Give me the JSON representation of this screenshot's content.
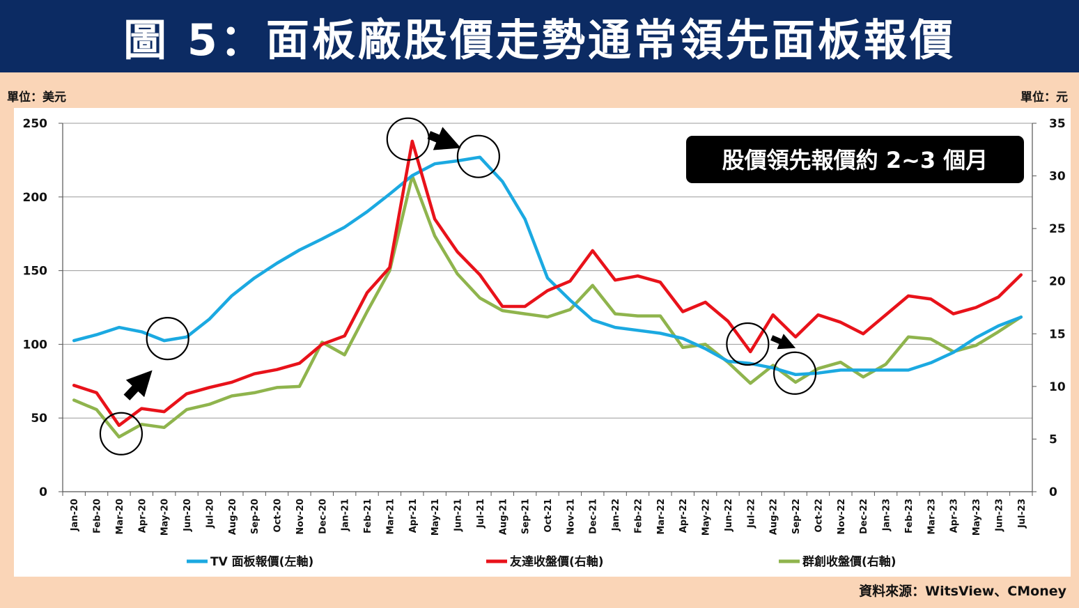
{
  "title": "圖 5：面板廠股價走勢通常領先面板報價",
  "unit_left": "單位：美元",
  "unit_right": "單位：元",
  "source": "資料來源：WitsView、CMoney",
  "chart_data": {
    "type": "line",
    "annotation": "股價領先報價約 2~3 個月",
    "categories": [
      "Jan-20",
      "Feb-20",
      "Mar-20",
      "Apr-20",
      "May-20",
      "Jun-20",
      "Jul-20",
      "Aug-20",
      "Sep-20",
      "Oct-20",
      "Nov-20",
      "Dec-20",
      "Jan-21",
      "Feb-21",
      "Mar-21",
      "Apr-21",
      "May-21",
      "Jun-21",
      "Jul-21",
      "Aug-21",
      "Sep-21",
      "Oct-21",
      "Nov-21",
      "Dec-21",
      "Jan-22",
      "Feb-22",
      "Mar-22",
      "Apr-22",
      "May-22",
      "Jun-22",
      "Jul-22",
      "Aug-22",
      "Sep-22",
      "Oct-22",
      "Nov-22",
      "Dec-22",
      "Jan-23",
      "Feb-23",
      "Mar-23",
      "Apr-23",
      "May-23",
      "Jun-23",
      "Jul-23"
    ],
    "y_left": {
      "min": 0,
      "max": 250,
      "ticks": [
        0,
        50,
        100,
        150,
        200,
        250
      ]
    },
    "y_right": {
      "min": 0,
      "max": 35,
      "ticks": [
        0,
        5,
        10,
        15,
        20,
        25,
        30,
        35
      ]
    },
    "grid": true,
    "legend_position": "bottom",
    "series": [
      {
        "name": "TV 面板報價(左軸)",
        "axis": "left",
        "color": "#1ba9e1",
        "values": [
          102.5,
          106.5,
          111.5,
          108.5,
          102.5,
          105,
          117,
          133,
          145,
          155,
          164,
          171.5,
          179.5,
          190,
          202,
          214.5,
          222.5,
          224.5,
          227,
          210.5,
          185,
          145,
          130,
          116.5,
          111.5,
          109.5,
          107.5,
          104,
          97,
          88.5,
          87,
          84,
          79.5,
          80.5,
          82.5,
          82.5,
          82.5,
          82.5,
          87.5,
          94.5,
          104.5,
          112.5,
          118.5
        ]
      },
      {
        "name": "友達收盤價(右軸)",
        "axis": "right",
        "color": "#e8121a",
        "values": [
          10.1,
          9.4,
          6.3,
          7.9,
          7.6,
          9.3,
          9.9,
          10.4,
          11.2,
          11.6,
          12.2,
          14.0,
          14.8,
          18.9,
          21.3,
          33.3,
          25.9,
          22.8,
          20.6,
          17.6,
          17.6,
          19.1,
          20.0,
          22.9,
          20.1,
          20.5,
          19.9,
          17.1,
          18.0,
          16.2,
          13.3,
          16.8,
          14.7,
          16.8,
          16.1,
          15.0,
          16.8,
          18.6,
          18.3,
          16.9,
          17.5,
          18.5,
          20.6
        ]
      },
      {
        "name": "群創收盤價(右軸)",
        "axis": "right",
        "color": "#8fb44d",
        "values": [
          8.7,
          7.8,
          5.2,
          6.4,
          6.1,
          7.8,
          8.3,
          9.1,
          9.4,
          9.9,
          10.0,
          14.2,
          13.0,
          17.1,
          21.0,
          30.0,
          24.3,
          20.7,
          18.4,
          17.2,
          16.9,
          16.6,
          17.3,
          19.6,
          16.9,
          16.7,
          16.7,
          13.7,
          14.0,
          12.3,
          10.3,
          12.0,
          10.4,
          11.7,
          12.3,
          10.9,
          12.1,
          14.7,
          14.5,
          13.3,
          13.9,
          15.2,
          16.6
        ]
      }
    ]
  }
}
